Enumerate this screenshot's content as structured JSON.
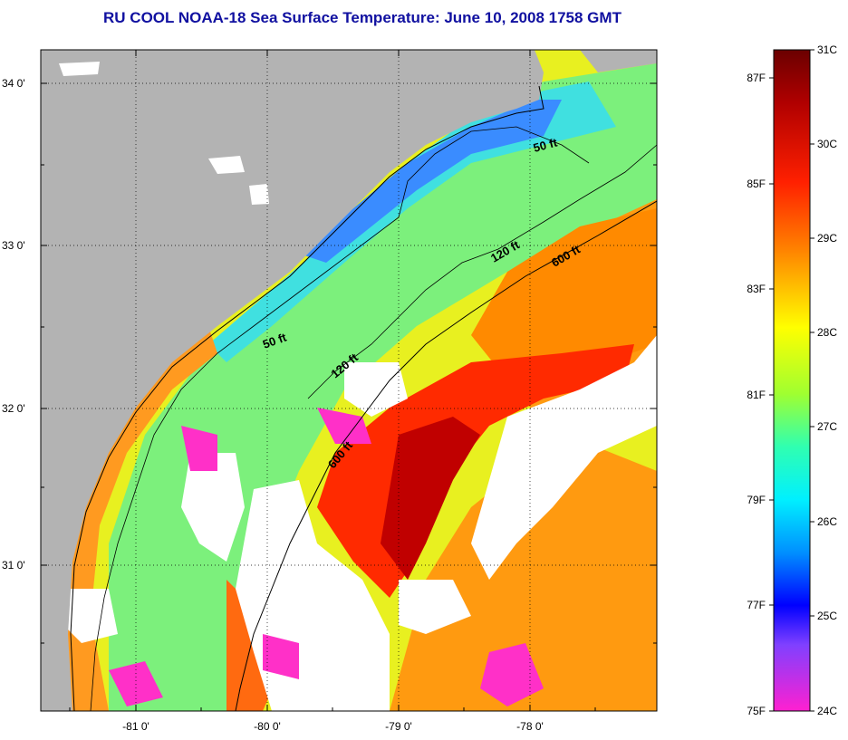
{
  "title": "RU COOL  NOAA-18  Sea Surface Temperature:  June 10, 2008 1758 GMT",
  "axes": {
    "lon_labels": [
      "-81 0'",
      "-80 0'",
      "-79 0'",
      "-78 0'"
    ],
    "lat_labels": [
      "34 0'",
      "33 0'",
      "32 0'",
      "31 0'"
    ]
  },
  "contours": {
    "labels": [
      "50 ft",
      "50 ft",
      "120 ft",
      "120 ft",
      "600 ft",
      "600 ft"
    ]
  },
  "colorbar": {
    "celsius_labels": [
      "31C",
      "30C",
      "29C",
      "28C",
      "27C",
      "26C",
      "25C",
      "24C"
    ],
    "fahrenheit_labels": [
      "87F",
      "85F",
      "83F",
      "81F",
      "79F",
      "77F",
      "75F"
    ]
  },
  "colors": {
    "land": "#b3b3b3",
    "cloud": "#ffffff",
    "title": "#1010a0"
  }
}
